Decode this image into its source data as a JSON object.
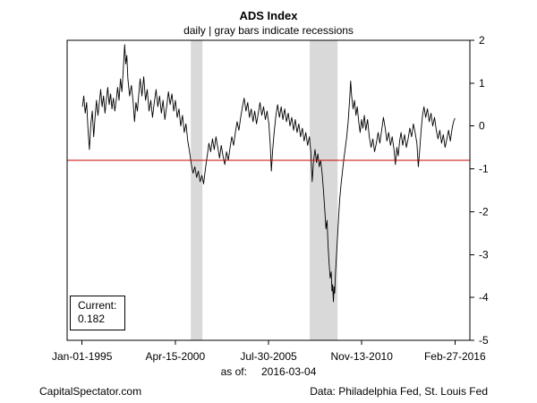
{
  "chart_data": {
    "type": "line",
    "title": "ADS Index",
    "subtitle": "daily | gray bars indicate recessions",
    "x_tick_labels": [
      "Jan-01-1995",
      "Apr-15-2000",
      "Jul-30-2005",
      "Nov-13-2010",
      "Feb-27-2016"
    ],
    "x_tick_values": [
      1995.0,
      2000.29,
      2005.58,
      2010.87,
      2016.16
    ],
    "xlim": [
      1995.0,
      2016.16
    ],
    "ylim": [
      -5,
      2
    ],
    "y_ticks": [
      2,
      1,
      0,
      -1,
      -2,
      -3,
      -4,
      -5
    ],
    "y_axis_side": "right",
    "grid": false,
    "legend": false,
    "line_color": "#000000",
    "band_color": "#d9d9d9",
    "reference_line": {
      "value": -0.8,
      "color": "#cc0000"
    },
    "recession_bands": [
      {
        "from": 2001.17,
        "to": 2001.83
      },
      {
        "from": 2007.92,
        "to": 2009.5
      }
    ],
    "as_of_label": "as of:",
    "as_of_date": "2016-03-04",
    "current_label": "Current:",
    "current_value": "0.182",
    "series": [
      {
        "name": "ADS Index",
        "points": [
          [
            1995.02,
            0.45
          ],
          [
            1995.1,
            0.7
          ],
          [
            1995.18,
            0.3
          ],
          [
            1995.26,
            0.55
          ],
          [
            1995.34,
            -0.1
          ],
          [
            1995.42,
            -0.55
          ],
          [
            1995.5,
            0.05
          ],
          [
            1995.58,
            0.35
          ],
          [
            1995.66,
            -0.25
          ],
          [
            1995.74,
            0.2
          ],
          [
            1995.82,
            0.6
          ],
          [
            1995.9,
            0.25
          ],
          [
            1995.98,
            0.55
          ],
          [
            1996.06,
            0.85
          ],
          [
            1996.14,
            0.45
          ],
          [
            1996.22,
            0.7
          ],
          [
            1996.3,
            0.3
          ],
          [
            1996.38,
            0.6
          ],
          [
            1996.46,
            0.9
          ],
          [
            1996.54,
            0.5
          ],
          [
            1996.62,
            0.75
          ],
          [
            1996.7,
            0.4
          ],
          [
            1996.78,
            0.65
          ],
          [
            1996.86,
            0.35
          ],
          [
            1996.94,
            0.6
          ],
          [
            1997.02,
            0.9
          ],
          [
            1997.1,
            0.6
          ],
          [
            1997.18,
            1.1
          ],
          [
            1997.26,
            0.8
          ],
          [
            1997.34,
            1.3
          ],
          [
            1997.42,
            1.9
          ],
          [
            1997.48,
            1.45
          ],
          [
            1997.54,
            1.65
          ],
          [
            1997.6,
            1.1
          ],
          [
            1997.7,
            0.7
          ],
          [
            1997.8,
            0.95
          ],
          [
            1997.9,
            0.55
          ],
          [
            1997.98,
            0.1
          ],
          [
            1998.06,
            0.55
          ],
          [
            1998.14,
            0.35
          ],
          [
            1998.22,
            0.75
          ],
          [
            1998.3,
            1.1
          ],
          [
            1998.4,
            0.7
          ],
          [
            1998.5,
            1.15
          ],
          [
            1998.6,
            0.6
          ],
          [
            1998.7,
            0.85
          ],
          [
            1998.8,
            0.35
          ],
          [
            1998.9,
            0.6
          ],
          [
            1999,
            0.2
          ],
          [
            1999.1,
            0.55
          ],
          [
            1999.2,
            0.85
          ],
          [
            1999.3,
            0.45
          ],
          [
            1999.4,
            0.7
          ],
          [
            1999.5,
            0.3
          ],
          [
            1999.6,
            0.6
          ],
          [
            1999.7,
            0.15
          ],
          [
            1999.8,
            0.45
          ],
          [
            1999.9,
            0.8
          ],
          [
            2000,
            0.5
          ],
          [
            2000.1,
            0.75
          ],
          [
            2000.2,
            0.35
          ],
          [
            2000.3,
            0.6
          ],
          [
            2000.4,
            0.2
          ],
          [
            2000.5,
            0.4
          ],
          [
            2000.6,
            0
          ],
          [
            2000.7,
            0.25
          ],
          [
            2000.8,
            -0.15
          ],
          [
            2000.9,
            0.05
          ],
          [
            2001,
            -0.35
          ],
          [
            2001.1,
            -0.6
          ],
          [
            2001.2,
            -0.9
          ],
          [
            2001.3,
            -1.1
          ],
          [
            2001.4,
            -0.95
          ],
          [
            2001.5,
            -1.2
          ],
          [
            2001.6,
            -1.05
          ],
          [
            2001.7,
            -1.3
          ],
          [
            2001.8,
            -1.15
          ],
          [
            2001.9,
            -1.35
          ],
          [
            2002,
            -1
          ],
          [
            2002.1,
            -0.7
          ],
          [
            2002.2,
            -0.4
          ],
          [
            2002.3,
            -0.6
          ],
          [
            2002.4,
            -0.3
          ],
          [
            2002.5,
            -0.55
          ],
          [
            2002.6,
            -0.25
          ],
          [
            2002.7,
            -0.5
          ],
          [
            2002.8,
            -0.75
          ],
          [
            2002.9,
            -0.45
          ],
          [
            2003,
            -0.7
          ],
          [
            2003.1,
            -0.9
          ],
          [
            2003.2,
            -0.6
          ],
          [
            2003.3,
            -0.8
          ],
          [
            2003.4,
            -0.5
          ],
          [
            2003.5,
            -0.25
          ],
          [
            2003.6,
            -0.45
          ],
          [
            2003.7,
            -0.15
          ],
          [
            2003.8,
            0.1
          ],
          [
            2003.9,
            -0.1
          ],
          [
            2004,
            0.2
          ],
          [
            2004.1,
            0.45
          ],
          [
            2004.2,
            0.65
          ],
          [
            2004.3,
            0.35
          ],
          [
            2004.4,
            0.55
          ],
          [
            2004.5,
            0.2
          ],
          [
            2004.6,
            0.4
          ],
          [
            2004.7,
            0.1
          ],
          [
            2004.8,
            0.35
          ],
          [
            2004.9,
            0.05
          ],
          [
            2005,
            0.3
          ],
          [
            2005.1,
            0.55
          ],
          [
            2005.2,
            0.25
          ],
          [
            2005.3,
            0.45
          ],
          [
            2005.4,
            0.15
          ],
          [
            2005.5,
            0.35
          ],
          [
            2005.6,
            0.05
          ],
          [
            2005.68,
            -0.45
          ],
          [
            2005.74,
            -1.05
          ],
          [
            2005.82,
            -0.55
          ],
          [
            2005.9,
            -0.15
          ],
          [
            2006,
            0.25
          ],
          [
            2006.1,
            0.5
          ],
          [
            2006.2,
            0.2
          ],
          [
            2006.3,
            0.45
          ],
          [
            2006.4,
            0.15
          ],
          [
            2006.5,
            0.4
          ],
          [
            2006.6,
            0.1
          ],
          [
            2006.7,
            0.3
          ],
          [
            2006.8,
            0
          ],
          [
            2006.9,
            0.2
          ],
          [
            2007,
            -0.1
          ],
          [
            2007.1,
            0.15
          ],
          [
            2007.2,
            -0.15
          ],
          [
            2007.3,
            0.05
          ],
          [
            2007.4,
            -0.25
          ],
          [
            2007.5,
            -0.05
          ],
          [
            2007.6,
            -0.35
          ],
          [
            2007.7,
            -0.15
          ],
          [
            2007.8,
            -0.45
          ],
          [
            2007.9,
            -0.25
          ],
          [
            2007.98,
            -0.6
          ],
          [
            2008.06,
            -1.3
          ],
          [
            2008.14,
            -0.8
          ],
          [
            2008.22,
            -0.55
          ],
          [
            2008.3,
            -0.85
          ],
          [
            2008.38,
            -0.65
          ],
          [
            2008.46,
            -0.95
          ],
          [
            2008.54,
            -0.8
          ],
          [
            2008.62,
            -1.1
          ],
          [
            2008.7,
            -1.5
          ],
          [
            2008.78,
            -2
          ],
          [
            2008.84,
            -2.4
          ],
          [
            2008.9,
            -2.2
          ],
          [
            2008.96,
            -2.8
          ],
          [
            2009.02,
            -3.2
          ],
          [
            2009.08,
            -3.55
          ],
          [
            2009.14,
            -3.4
          ],
          [
            2009.18,
            -3.85
          ],
          [
            2009.22,
            -3.7
          ],
          [
            2009.26,
            -4.1
          ],
          [
            2009.3,
            -3.75
          ],
          [
            2009.34,
            -3.9
          ],
          [
            2009.38,
            -3.45
          ],
          [
            2009.44,
            -3
          ],
          [
            2009.5,
            -2.55
          ],
          [
            2009.56,
            -2.1
          ],
          [
            2009.62,
            -1.7
          ],
          [
            2009.7,
            -1.35
          ],
          [
            2009.78,
            -1.05
          ],
          [
            2009.86,
            -0.75
          ],
          [
            2009.94,
            -0.5
          ],
          [
            2010.02,
            -0.25
          ],
          [
            2010.1,
            0.1
          ],
          [
            2010.18,
            0.6
          ],
          [
            2010.24,
            1.05
          ],
          [
            2010.3,
            0.7
          ],
          [
            2010.38,
            0.4
          ],
          [
            2010.46,
            0.6
          ],
          [
            2010.54,
            0.25
          ],
          [
            2010.62,
            0.45
          ],
          [
            2010.7,
            0.1
          ],
          [
            2010.78,
            -0.15
          ],
          [
            2010.86,
            0.15
          ],
          [
            2010.94,
            -0.05
          ],
          [
            2011.02,
            0.25
          ],
          [
            2011.1,
            -0.1
          ],
          [
            2011.2,
            0.15
          ],
          [
            2011.3,
            -0.25
          ],
          [
            2011.4,
            -0.5
          ],
          [
            2011.5,
            -0.3
          ],
          [
            2011.6,
            -0.6
          ],
          [
            2011.7,
            -0.4
          ],
          [
            2011.8,
            -0.15
          ],
          [
            2011.9,
            -0.4
          ],
          [
            2012,
            -0.1
          ],
          [
            2012.1,
            0.2
          ],
          [
            2012.2,
            -0.05
          ],
          [
            2012.3,
            -0.35
          ],
          [
            2012.4,
            -0.15
          ],
          [
            2012.5,
            -0.45
          ],
          [
            2012.6,
            -0.25
          ],
          [
            2012.7,
            -0.55
          ],
          [
            2012.78,
            -0.9
          ],
          [
            2012.86,
            -0.5
          ],
          [
            2012.94,
            -0.7
          ],
          [
            2013.02,
            -0.35
          ],
          [
            2013.1,
            -0.15
          ],
          [
            2013.2,
            -0.45
          ],
          [
            2013.3,
            -0.2
          ],
          [
            2013.4,
            -0.5
          ],
          [
            2013.5,
            -0.3
          ],
          [
            2013.6,
            -0.05
          ],
          [
            2013.7,
            -0.25
          ],
          [
            2013.8,
            0.05
          ],
          [
            2013.9,
            -0.15
          ],
          [
            2014,
            -0.4
          ],
          [
            2014.08,
            -0.95
          ],
          [
            2014.16,
            -0.55
          ],
          [
            2014.24,
            -0.1
          ],
          [
            2014.32,
            0.25
          ],
          [
            2014.4,
            0.45
          ],
          [
            2014.5,
            0.2
          ],
          [
            2014.6,
            0.4
          ],
          [
            2014.7,
            0.1
          ],
          [
            2014.8,
            0.3
          ],
          [
            2014.9,
            0
          ],
          [
            2015,
            0.2
          ],
          [
            2015.1,
            -0.1
          ],
          [
            2015.2,
            -0.3
          ],
          [
            2015.3,
            -0.1
          ],
          [
            2015.4,
            -0.4
          ],
          [
            2015.5,
            -0.2
          ],
          [
            2015.6,
            -0.5
          ],
          [
            2015.7,
            -0.3
          ],
          [
            2015.8,
            -0.1
          ],
          [
            2015.9,
            -0.35
          ],
          [
            2016,
            -0.05
          ],
          [
            2016.08,
            0.1
          ],
          [
            2016.16,
            0.182
          ]
        ]
      }
    ]
  },
  "footer": {
    "left": "CapitalSpectator.com",
    "right": "Data: Philadelphia Fed, St. Louis Fed"
  }
}
